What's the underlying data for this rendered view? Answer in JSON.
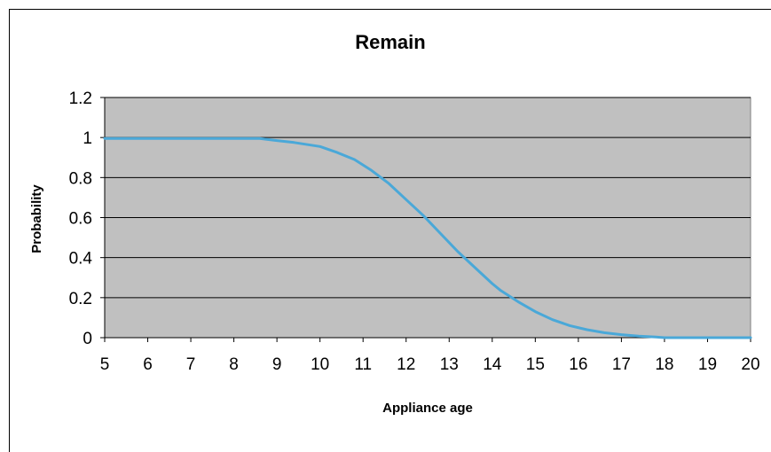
{
  "chart_data": {
    "type": "line",
    "title": "Remain",
    "xlabel": "Appliance age",
    "ylabel": "Probability",
    "xlim": [
      5,
      20
    ],
    "ylim": [
      0,
      1.2
    ],
    "x_ticks": [
      5,
      6,
      7,
      8,
      9,
      10,
      11,
      12,
      13,
      14,
      15,
      16,
      17,
      18,
      19,
      20
    ],
    "y_ticks": [
      0,
      0.2,
      0.4,
      0.6,
      0.8,
      1,
      1.2
    ],
    "x_tick_labels": [
      "5",
      "6",
      "7",
      "8",
      "9",
      "10",
      "11",
      "12",
      "13",
      "14",
      "15",
      "16",
      "17",
      "18",
      "19",
      "20"
    ],
    "y_tick_labels": [
      "0",
      "0.2",
      "0.4",
      "0.6",
      "0.8",
      "1",
      "1.2"
    ],
    "grid": true,
    "legend": "none",
    "plot_background": "#c0c0c0",
    "line_color": "#4aa8d8",
    "series": [
      {
        "x": [
          5,
          6,
          7,
          8,
          8.6,
          9,
          9.4,
          10,
          10.4,
          10.8,
          11.2,
          11.6,
          12,
          12.4,
          12.8,
          13.2,
          13.6,
          14,
          14.2,
          14.6,
          15,
          15.4,
          15.8,
          16.2,
          16.6,
          17,
          17.4,
          17.8,
          18,
          19,
          20
        ],
        "y": [
          0.995,
          0.995,
          0.995,
          0.995,
          0.995,
          0.985,
          0.975,
          0.955,
          0.925,
          0.89,
          0.835,
          0.77,
          0.69,
          0.61,
          0.52,
          0.43,
          0.35,
          0.27,
          0.235,
          0.18,
          0.13,
          0.09,
          0.06,
          0.04,
          0.025,
          0.015,
          0.008,
          0.003,
          0,
          0,
          0
        ]
      }
    ]
  }
}
